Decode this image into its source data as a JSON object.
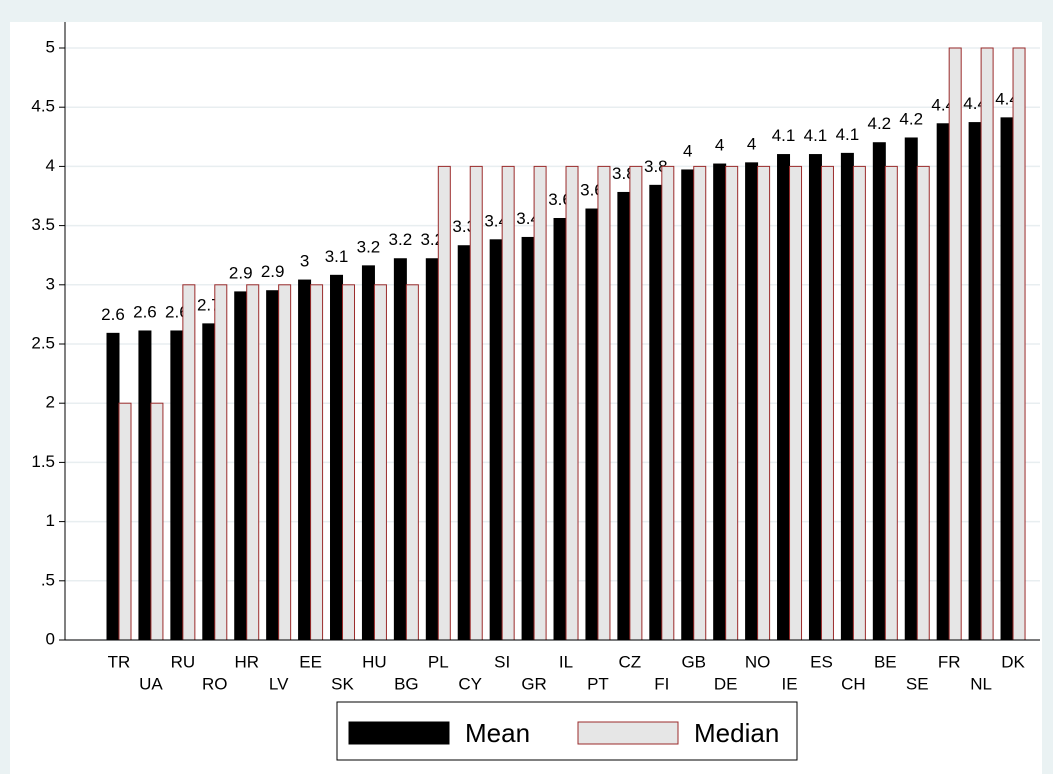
{
  "chart_data": {
    "type": "bar",
    "categories": [
      "TR",
      "UA",
      "RU",
      "RO",
      "HR",
      "LV",
      "EE",
      "SK",
      "HU",
      "BG",
      "PL",
      "CY",
      "SI",
      "GR",
      "IL",
      "PT",
      "CZ",
      "FI",
      "GB",
      "DE",
      "NO",
      "IE",
      "ES",
      "CH",
      "BE",
      "SE",
      "FR",
      "NL",
      "DK"
    ],
    "series": [
      {
        "name": "Mean",
        "color": "#000000",
        "values": [
          2.59,
          2.61,
          2.61,
          2.67,
          2.94,
          2.95,
          3.04,
          3.08,
          3.16,
          3.22,
          3.22,
          3.33,
          3.38,
          3.4,
          3.56,
          3.64,
          3.78,
          3.84,
          3.97,
          4.02,
          4.03,
          4.1,
          4.1,
          4.11,
          4.2,
          4.24,
          4.36,
          4.37,
          4.41
        ],
        "value_labels": [
          "2.6",
          "2.6",
          "2.6",
          "2.7",
          "2.9",
          "2.9",
          "3",
          "3.1",
          "3.2",
          "3.2",
          "3.2",
          "3.3",
          "3.4",
          "3.4",
          "3.6",
          "3.6",
          "3.8",
          "3.8",
          "4",
          "4",
          "4",
          "4.1",
          "4.1",
          "4.1",
          "4.2",
          "4.2",
          "4.4",
          "4.4",
          "4.4"
        ]
      },
      {
        "name": "Median",
        "color": "#e6e6e6",
        "edgecolor": "#9b2b2b",
        "values": [
          2,
          2,
          3,
          3,
          3,
          3,
          3,
          3,
          3,
          3,
          4,
          4,
          4,
          4,
          4,
          4,
          4,
          4,
          4,
          4,
          4,
          4,
          4,
          4,
          4,
          4,
          5,
          5,
          5
        ]
      }
    ],
    "ylim": [
      0,
      5
    ],
    "yticks": [
      0,
      {
        "value": 0.5,
        "label": ".5"
      },
      1,
      1.5,
      2,
      2.5,
      3,
      3.5,
      4,
      4.5,
      5
    ],
    "grid": true,
    "legend": "bottom"
  }
}
